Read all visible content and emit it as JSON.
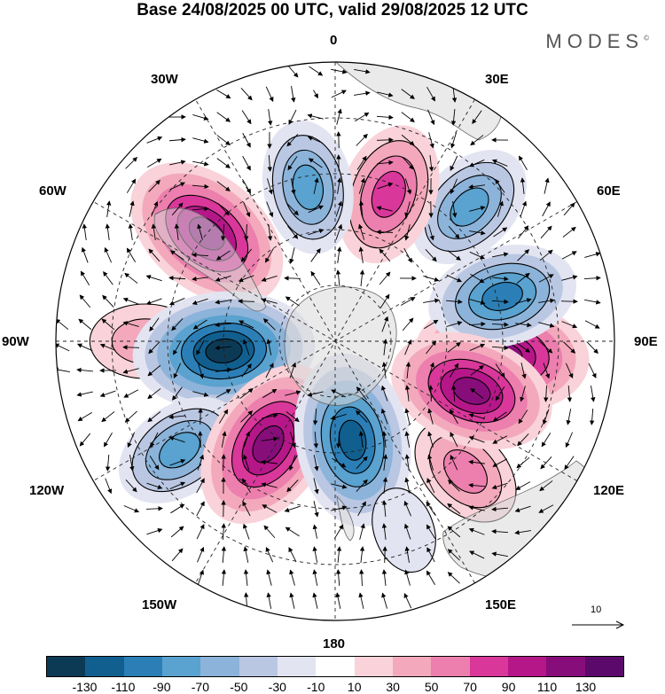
{
  "title": "Base 24/08/2025 00 UTC, valid 29/08/2025 12 UTC",
  "brand": "MODES",
  "brand_mark": "©",
  "longitude_labels": {
    "lon_0": "0",
    "lon_30e": "30E",
    "lon_60e": "60E",
    "lon_90e": "90E",
    "lon_120e": "120E",
    "lon_150e": "150E",
    "lon_180": "180",
    "lon_150w": "150W",
    "lon_120w": "120W",
    "lon_90w": "90W",
    "lon_60w": "60W",
    "lon_30w": "30W"
  },
  "reference_vector": {
    "value": "10"
  },
  "legend": {
    "colors": [
      "#0c3a55",
      "#115f8f",
      "#2b7fb6",
      "#5aa2cf",
      "#8cb3d9",
      "#b9c7e3",
      "#e3e4f1",
      "#ffffff",
      "#f9d3d9",
      "#f3a9bb",
      "#ec7fae",
      "#d9379a",
      "#b51789",
      "#870e7a",
      "#5b0a6b"
    ],
    "ticks": [
      "-130",
      "-110",
      "-90",
      "-70",
      "-50",
      "-30",
      "-10",
      "10",
      "30",
      "50",
      "70",
      "90",
      "110",
      "130"
    ]
  },
  "anomaly_centers": [
    {
      "lon": 95,
      "colat": 30,
      "value": 130
    },
    {
      "lon": 135,
      "colat": 33,
      "value": 60
    },
    {
      "lon": 75,
      "colat": 31,
      "value": -100
    },
    {
      "lon": 45,
      "colat": 34,
      "value": -80
    },
    {
      "lon": 110,
      "colat": 26,
      "value": 120
    },
    {
      "lon": 20,
      "colat": 28,
      "value": 90
    },
    {
      "lon": -10,
      "colat": 28,
      "value": -80
    },
    {
      "lon": -50,
      "colat": 30,
      "value": 130
    },
    {
      "lon": -90,
      "colat": 34,
      "value": 50
    },
    {
      "lon": -95,
      "colat": 20,
      "value": -140
    },
    {
      "lon": -125,
      "colat": 34,
      "value": -80
    },
    {
      "lon": -147,
      "colat": 22,
      "value": 130
    },
    {
      "lon": 170,
      "colat": 18,
      "value": -130
    },
    {
      "lon": 160,
      "colat": 36,
      "value": -20
    }
  ]
}
